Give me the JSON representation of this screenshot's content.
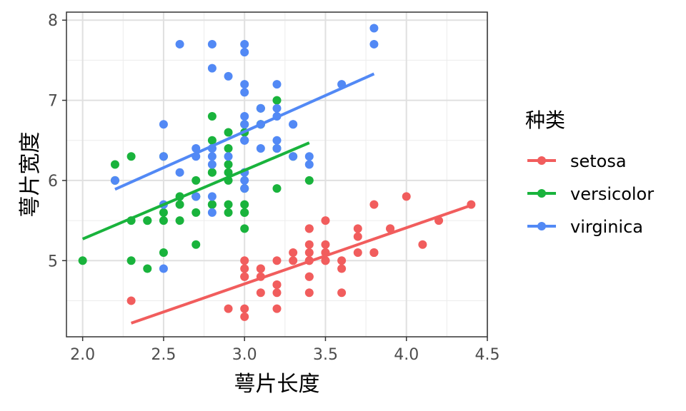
{
  "chart_data": {
    "type": "scatter",
    "xlabel": "萼片长度",
    "ylabel": "萼片宽度",
    "xlim": [
      1.9,
      4.5
    ],
    "ylim": [
      4.05,
      8.1
    ],
    "x_ticks": [
      2.0,
      2.5,
      3.0,
      3.5,
      4.0,
      4.5
    ],
    "y_ticks": [
      5,
      6,
      7,
      8
    ],
    "x_tick_labels": [
      "2.0",
      "2.5",
      "3.0",
      "3.5",
      "4.0",
      "4.5"
    ],
    "y_tick_labels": [
      "5",
      "6",
      "7",
      "8"
    ],
    "grid": true,
    "legend": {
      "title": "种类",
      "position": "right"
    },
    "series": [
      {
        "name": "setosa",
        "color": "#F15D5D",
        "trend": {
          "x": [
            2.3,
            4.4
          ],
          "y": [
            4.22,
            5.69
          ]
        },
        "points": [
          [
            3.5,
            5.1
          ],
          [
            3.0,
            4.9
          ],
          [
            3.2,
            4.7
          ],
          [
            3.1,
            4.6
          ],
          [
            3.6,
            5.0
          ],
          [
            3.9,
            5.4
          ],
          [
            3.4,
            4.6
          ],
          [
            3.4,
            5.0
          ],
          [
            2.9,
            4.4
          ],
          [
            3.1,
            4.9
          ],
          [
            3.7,
            5.4
          ],
          [
            3.4,
            4.8
          ],
          [
            3.0,
            4.8
          ],
          [
            3.0,
            4.3
          ],
          [
            4.0,
            5.8
          ],
          [
            4.4,
            5.7
          ],
          [
            3.9,
            5.4
          ],
          [
            3.5,
            5.1
          ],
          [
            3.8,
            5.7
          ],
          [
            3.8,
            5.1
          ],
          [
            3.4,
            5.4
          ],
          [
            3.7,
            5.1
          ],
          [
            3.6,
            4.6
          ],
          [
            3.3,
            5.1
          ],
          [
            3.4,
            4.8
          ],
          [
            3.0,
            5.0
          ],
          [
            3.4,
            5.0
          ],
          [
            3.5,
            5.2
          ],
          [
            3.4,
            5.2
          ],
          [
            3.2,
            4.7
          ],
          [
            3.1,
            4.8
          ],
          [
            3.4,
            5.4
          ],
          [
            4.1,
            5.2
          ],
          [
            4.2,
            5.5
          ],
          [
            3.1,
            4.9
          ],
          [
            3.2,
            5.0
          ],
          [
            3.5,
            5.5
          ],
          [
            3.6,
            4.9
          ],
          [
            3.0,
            4.4
          ],
          [
            3.4,
            5.1
          ],
          [
            3.5,
            5.0
          ],
          [
            2.3,
            4.5
          ],
          [
            3.2,
            4.4
          ],
          [
            3.5,
            5.0
          ],
          [
            3.8,
            5.1
          ],
          [
            3.0,
            4.8
          ],
          [
            3.8,
            5.1
          ],
          [
            3.2,
            4.6
          ],
          [
            3.7,
            5.3
          ],
          [
            3.3,
            5.0
          ]
        ]
      },
      {
        "name": "versicolor",
        "color": "#19B33C",
        "trend": {
          "x": [
            2.0,
            3.4
          ],
          "y": [
            5.27,
            6.47
          ]
        },
        "points": [
          [
            3.2,
            7.0
          ],
          [
            3.2,
            6.4
          ],
          [
            3.1,
            6.9
          ],
          [
            2.3,
            5.5
          ],
          [
            2.8,
            6.5
          ],
          [
            2.8,
            5.7
          ],
          [
            3.3,
            6.3
          ],
          [
            2.4,
            4.9
          ],
          [
            2.9,
            6.6
          ],
          [
            2.7,
            5.2
          ],
          [
            2.0,
            5.0
          ],
          [
            3.0,
            5.9
          ],
          [
            2.2,
            6.0
          ],
          [
            2.9,
            6.1
          ],
          [
            2.9,
            5.6
          ],
          [
            3.1,
            6.7
          ],
          [
            3.0,
            5.6
          ],
          [
            2.7,
            5.8
          ],
          [
            2.2,
            6.2
          ],
          [
            2.5,
            5.6
          ],
          [
            3.2,
            5.9
          ],
          [
            2.8,
            6.1
          ],
          [
            2.5,
            6.3
          ],
          [
            2.8,
            6.1
          ],
          [
            2.9,
            6.4
          ],
          [
            3.0,
            6.6
          ],
          [
            2.8,
            6.8
          ],
          [
            3.0,
            6.7
          ],
          [
            2.9,
            6.0
          ],
          [
            2.6,
            5.7
          ],
          [
            2.4,
            5.5
          ],
          [
            2.4,
            5.5
          ],
          [
            2.7,
            5.8
          ],
          [
            2.7,
            6.0
          ],
          [
            3.0,
            5.4
          ],
          [
            3.4,
            6.0
          ],
          [
            3.1,
            6.7
          ],
          [
            2.3,
            6.3
          ],
          [
            3.0,
            5.6
          ],
          [
            2.5,
            5.5
          ],
          [
            2.6,
            5.5
          ],
          [
            3.0,
            6.1
          ],
          [
            2.6,
            5.8
          ],
          [
            2.3,
            5.0
          ],
          [
            2.7,
            5.6
          ],
          [
            3.0,
            5.7
          ],
          [
            2.9,
            5.7
          ],
          [
            2.9,
            6.2
          ],
          [
            2.5,
            5.1
          ],
          [
            2.8,
            5.7
          ]
        ]
      },
      {
        "name": "virginica",
        "color": "#5289F5",
        "trend": {
          "x": [
            2.2,
            3.8
          ],
          "y": [
            5.89,
            7.33
          ]
        },
        "points": [
          [
            3.3,
            6.3
          ],
          [
            2.7,
            5.8
          ],
          [
            3.0,
            7.1
          ],
          [
            2.9,
            6.3
          ],
          [
            3.0,
            6.5
          ],
          [
            3.0,
            7.6
          ],
          [
            2.5,
            4.9
          ],
          [
            2.9,
            7.3
          ],
          [
            2.5,
            6.7
          ],
          [
            3.6,
            7.2
          ],
          [
            3.2,
            6.5
          ],
          [
            2.7,
            6.4
          ],
          [
            3.0,
            6.8
          ],
          [
            2.5,
            5.7
          ],
          [
            2.8,
            5.8
          ],
          [
            3.2,
            6.4
          ],
          [
            3.0,
            6.5
          ],
          [
            3.8,
            7.7
          ],
          [
            2.6,
            7.7
          ],
          [
            2.2,
            6.0
          ],
          [
            3.2,
            6.9
          ],
          [
            2.8,
            5.6
          ],
          [
            2.8,
            7.7
          ],
          [
            2.7,
            6.3
          ],
          [
            3.3,
            6.7
          ],
          [
            3.2,
            7.2
          ],
          [
            2.8,
            6.2
          ],
          [
            3.0,
            6.1
          ],
          [
            2.8,
            6.4
          ],
          [
            3.0,
            7.2
          ],
          [
            2.8,
            7.4
          ],
          [
            3.8,
            7.9
          ],
          [
            2.8,
            6.4
          ],
          [
            2.8,
            6.3
          ],
          [
            2.6,
            6.1
          ],
          [
            3.0,
            7.7
          ],
          [
            3.4,
            6.3
          ],
          [
            3.1,
            6.4
          ],
          [
            3.0,
            6.0
          ],
          [
            3.1,
            6.9
          ],
          [
            3.1,
            6.7
          ],
          [
            3.1,
            6.9
          ],
          [
            2.7,
            5.8
          ],
          [
            3.2,
            6.8
          ],
          [
            3.3,
            6.7
          ],
          [
            3.0,
            6.7
          ],
          [
            2.5,
            6.3
          ],
          [
            3.0,
            6.5
          ],
          [
            3.4,
            6.2
          ],
          [
            3.0,
            5.9
          ]
        ]
      }
    ]
  }
}
